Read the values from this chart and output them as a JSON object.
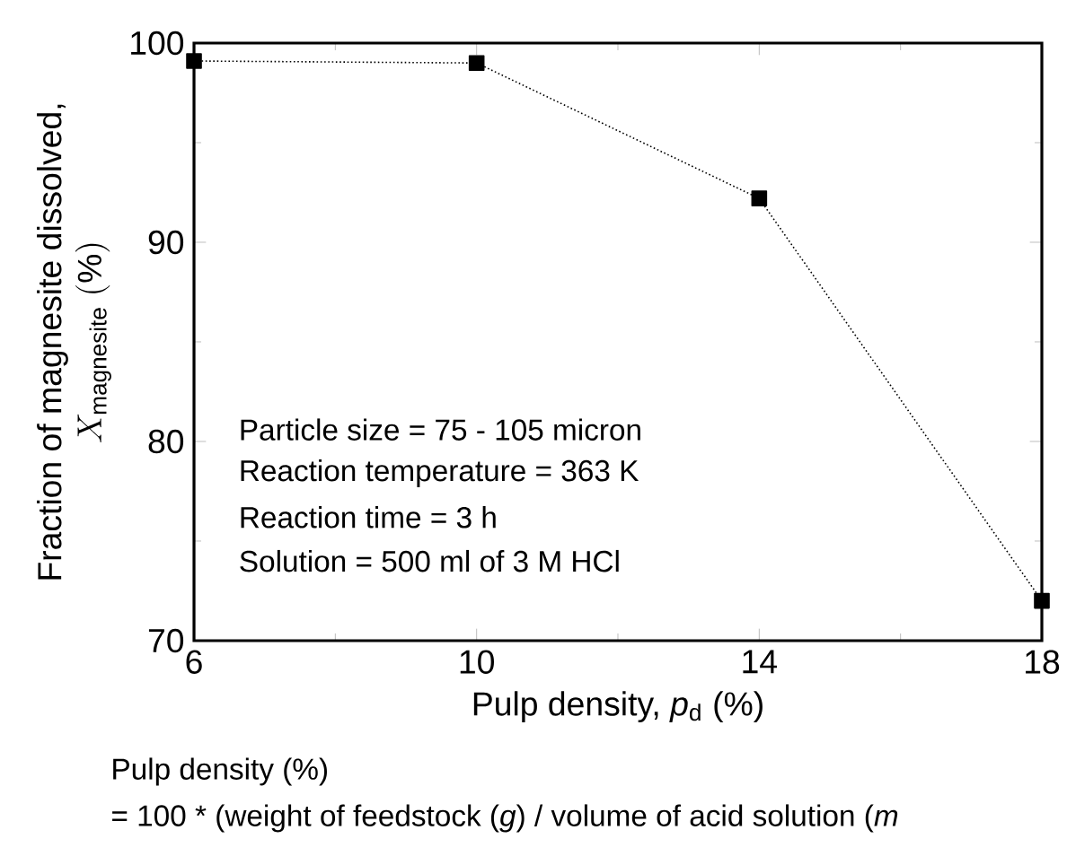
{
  "chart_data": {
    "type": "line",
    "xlabel": "Pulp density, *p*$_{d}$ (%)",
    "ylabel": [
      "Fraction of magnesite dissolved,",
      "X_{\\mathrm{magnesite}}\\ \\mathrm{(\\%)}"
    ],
    "x": [
      6,
      10,
      14,
      18
    ],
    "series": [
      {
        "color": "#000000",
        "values": [
          99.1,
          99.0,
          92.2,
          72.0
        ]
      }
    ],
    "marker": "square",
    "line_style": "dotted",
    "xlim": [
      6,
      18
    ],
    "xticks": [
      6,
      10,
      14,
      18
    ],
    "ylim": [
      70,
      100
    ],
    "yticks": [
      70,
      80,
      90,
      100
    ],
    "grid": false,
    "annotations": [
      "Particle size = 75 - 105 micron",
      "Reaction temperature = 363 K",
      "Reaction time = 3 h",
      "Solution = 500 ml of 3 M HCl",
      "Pulp density (%)",
      "= 100 * (weight of feedstock (*g*) / volume of acid solution (*m*"
    ]
  }
}
